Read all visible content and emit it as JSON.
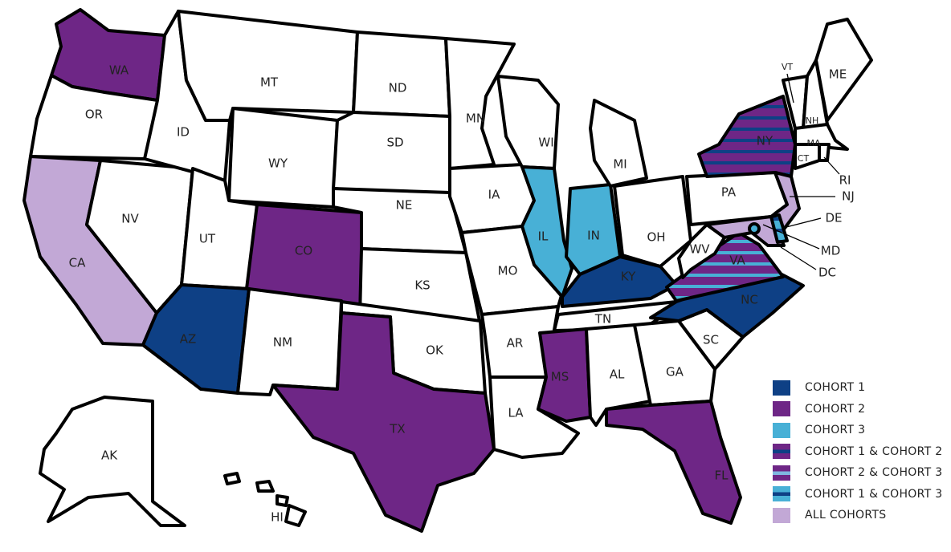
{
  "colors": {
    "cohort1": "#0e4085",
    "cohort2": "#6e2686",
    "cohort3": "#48b0d6",
    "all": "#c2a8d6",
    "none": "#ffffff"
  },
  "legend": [
    {
      "key": "c1",
      "label": "COHORT 1"
    },
    {
      "key": "c2",
      "label": "COHORT 2"
    },
    {
      "key": "c3",
      "label": "COHORT 3"
    },
    {
      "key": "c12",
      "label": "COHORT 1 & COHORT 2"
    },
    {
      "key": "c23",
      "label": "COHORT 2 & COHORT 3"
    },
    {
      "key": "c13",
      "label": "COHORT 1 & COHORT 3"
    },
    {
      "key": "all",
      "label": "ALL COHORTS"
    }
  ],
  "states": [
    {
      "code": "WA",
      "cohort": "c2"
    },
    {
      "code": "OR",
      "cohort": "none"
    },
    {
      "code": "CA",
      "cohort": "all"
    },
    {
      "code": "NV",
      "cohort": "none"
    },
    {
      "code": "ID",
      "cohort": "none"
    },
    {
      "code": "MT",
      "cohort": "none"
    },
    {
      "code": "WY",
      "cohort": "none"
    },
    {
      "code": "UT",
      "cohort": "none"
    },
    {
      "code": "CO",
      "cohort": "c2"
    },
    {
      "code": "AZ",
      "cohort": "c1"
    },
    {
      "code": "NM",
      "cohort": "none"
    },
    {
      "code": "ND",
      "cohort": "none"
    },
    {
      "code": "SD",
      "cohort": "none"
    },
    {
      "code": "NE",
      "cohort": "none"
    },
    {
      "code": "KS",
      "cohort": "none"
    },
    {
      "code": "OK",
      "cohort": "none"
    },
    {
      "code": "TX",
      "cohort": "c2"
    },
    {
      "code": "MN",
      "cohort": "none"
    },
    {
      "code": "IA",
      "cohort": "none"
    },
    {
      "code": "MO",
      "cohort": "none"
    },
    {
      "code": "AR",
      "cohort": "none"
    },
    {
      "code": "LA",
      "cohort": "none"
    },
    {
      "code": "WI",
      "cohort": "none"
    },
    {
      "code": "IL",
      "cohort": "c3"
    },
    {
      "code": "IN",
      "cohort": "c3"
    },
    {
      "code": "MI",
      "cohort": "none"
    },
    {
      "code": "OH",
      "cohort": "none"
    },
    {
      "code": "KY",
      "cohort": "c1"
    },
    {
      "code": "TN",
      "cohort": "none"
    },
    {
      "code": "MS",
      "cohort": "c2"
    },
    {
      "code": "AL",
      "cohort": "none"
    },
    {
      "code": "GA",
      "cohort": "none"
    },
    {
      "code": "FL",
      "cohort": "c2"
    },
    {
      "code": "SC",
      "cohort": "none"
    },
    {
      "code": "NC",
      "cohort": "c1"
    },
    {
      "code": "VA",
      "cohort": "c23"
    },
    {
      "code": "WV",
      "cohort": "none"
    },
    {
      "code": "PA",
      "cohort": "none"
    },
    {
      "code": "NY",
      "cohort": "c12"
    },
    {
      "code": "NJ",
      "cohort": "all"
    },
    {
      "code": "MD",
      "cohort": "all"
    },
    {
      "code": "DE",
      "cohort": "c13"
    },
    {
      "code": "DC",
      "cohort": "c3"
    },
    {
      "code": "VT",
      "cohort": "none"
    },
    {
      "code": "NH",
      "cohort": "none"
    },
    {
      "code": "ME",
      "cohort": "none"
    },
    {
      "code": "MA",
      "cohort": "none"
    },
    {
      "code": "CT",
      "cohort": "none"
    },
    {
      "code": "RI",
      "cohort": "none"
    },
    {
      "code": "AK",
      "cohort": "none"
    },
    {
      "code": "HI",
      "cohort": "none"
    }
  ]
}
